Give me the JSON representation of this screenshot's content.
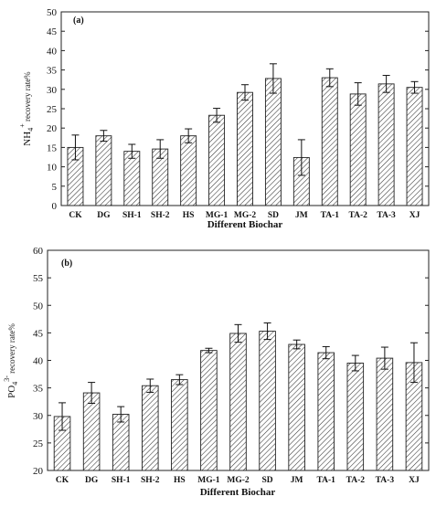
{
  "chart_data": [
    {
      "type": "bar",
      "panel_label": "(a)",
      "categories": [
        "CK",
        "DG",
        "SH-1",
        "SH-2",
        "HS",
        "MG-1",
        "MG-2",
        "SD",
        "JM",
        "TA-1",
        "TA-2",
        "TA-3",
        "XJ"
      ],
      "values": [
        15.0,
        18.0,
        14.0,
        14.6,
        18.0,
        23.3,
        29.2,
        32.8,
        12.4,
        33.0,
        28.8,
        31.4,
        30.5
      ],
      "errors": [
        3.2,
        1.4,
        1.8,
        2.4,
        1.8,
        1.8,
        2.0,
        3.8,
        4.6,
        2.3,
        2.9,
        2.2,
        1.5
      ],
      "ylim": [
        0,
        50
      ],
      "yticks": [
        0,
        5,
        10,
        15,
        20,
        25,
        30,
        35,
        40,
        45,
        50
      ],
      "xlabel": "Different Biochar",
      "ylabel": {
        "base": "NH",
        "sub": "4",
        "sup": "+",
        "rest": " recovery rate%"
      },
      "bar_pattern": "diagonal-hatch",
      "grid": false
    },
    {
      "type": "bar",
      "panel_label": "(b)",
      "categories": [
        "CK",
        "DG",
        "SH-1",
        "SH-2",
        "HS",
        "MG-1",
        "MG-2",
        "SD",
        "JM",
        "TA-1",
        "TA-2",
        "TA-3",
        "XJ"
      ],
      "values": [
        29.8,
        34.1,
        30.2,
        35.4,
        36.5,
        41.8,
        44.9,
        45.3,
        42.9,
        41.4,
        39.5,
        40.4,
        39.6
      ],
      "errors": [
        2.5,
        1.9,
        1.4,
        1.2,
        0.9,
        0.4,
        1.6,
        1.5,
        0.8,
        1.1,
        1.4,
        2.0,
        3.6
      ],
      "ylim": [
        20,
        60
      ],
      "yticks": [
        20,
        25,
        30,
        35,
        40,
        45,
        50,
        55,
        60
      ],
      "xlabel": "Different Biochar",
      "ylabel": {
        "base": "PO",
        "sub": "4",
        "sup": "3-",
        "rest": " recovery rate%"
      },
      "bar_pattern": "diagonal-hatch",
      "grid": false
    }
  ]
}
